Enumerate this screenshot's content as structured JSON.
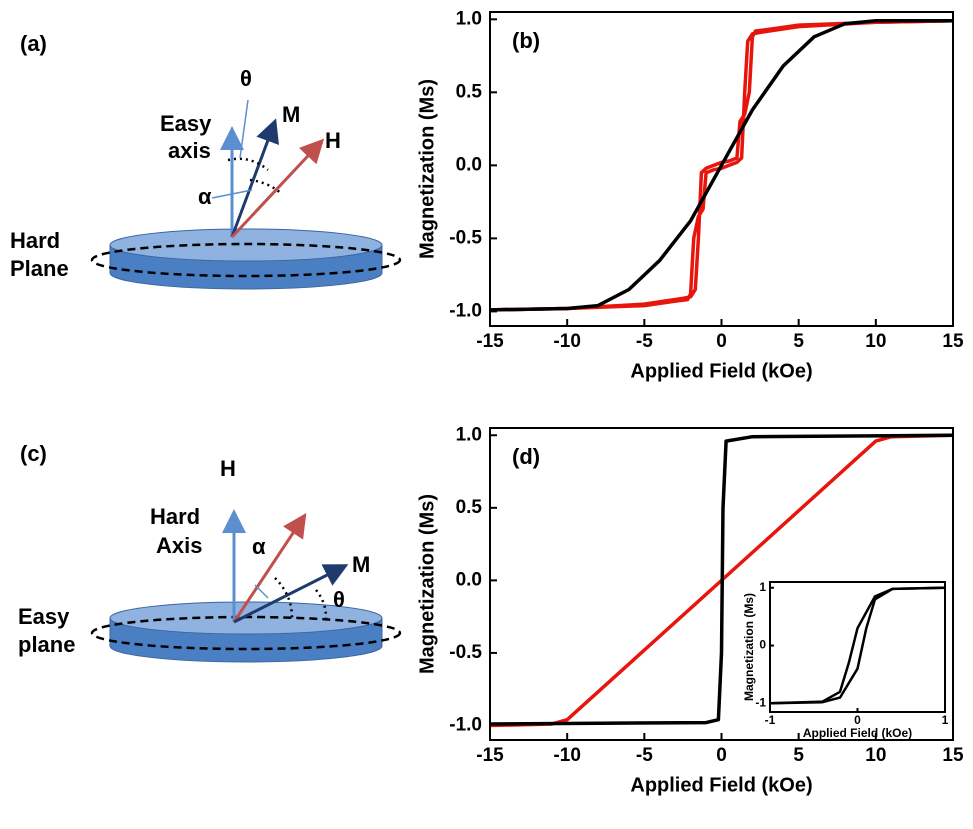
{
  "diagrams": [
    {
      "label": "(a)",
      "theta": "θ",
      "easy_axis": [
        "Easy",
        "axis"
      ],
      "m": "M",
      "h": "H",
      "alpha": "α",
      "plane": [
        "Hard",
        "Plane"
      ]
    },
    {
      "label": "(c)",
      "h": "H",
      "hard_axis": [
        "Hard",
        "Axis"
      ],
      "alpha": "α",
      "m": "M",
      "theta": "θ",
      "plane": [
        "Easy",
        "plane"
      ]
    }
  ],
  "chart_data": [
    {
      "type": "line",
      "panel_label": "(b)",
      "xlabel": "Applied Field (kOe)",
      "ylabel": "Magnetization (Ms)",
      "xlim": [
        -15,
        15
      ],
      "xticks": [
        -15,
        -10,
        -5,
        0,
        5,
        10,
        15
      ],
      "ylim": [
        -1.1,
        1.05
      ],
      "yticks": [
        {
          "value": 1.0,
          "label": "1.0"
        },
        0.5,
        {
          "value": 0.0,
          "label": "0.0"
        },
        -0.5,
        {
          "value": -1.0,
          "label": "-1.0"
        }
      ],
      "series": [
        {
          "color": "#e8150d",
          "x": [
            15,
            10,
            5,
            3,
            2.2,
            2,
            1.8,
            1.5,
            1.2,
            1,
            0.5,
            0,
            -0.5,
            -1,
            -1.3,
            -1.5,
            -1.7,
            -2,
            -2.5,
            -5,
            -10,
            -15
          ],
          "values": [
            0.99,
            0.98,
            0.96,
            0.93,
            0.92,
            0.88,
            0.5,
            0.35,
            0.3,
            0.05,
            0.03,
            0.02,
            0.0,
            -0.02,
            -0.05,
            -0.5,
            -0.85,
            -0.9,
            -0.91,
            -0.95,
            -0.98,
            -0.99
          ]
        },
        {
          "color": "#e8150d",
          "x": [
            -15,
            -10,
            -5,
            -3,
            -2.2,
            -2,
            -1.8,
            -1.5,
            -1.2,
            -1,
            -0.5,
            0,
            0.5,
            1,
            1.3,
            1.5,
            1.7,
            2,
            2.5,
            5,
            10,
            15
          ],
          "values": [
            -0.99,
            -0.98,
            -0.96,
            -0.93,
            -0.92,
            -0.88,
            -0.5,
            -0.35,
            -0.3,
            -0.05,
            -0.03,
            -0.02,
            0.0,
            0.02,
            0.05,
            0.5,
            0.85,
            0.9,
            0.91,
            0.95,
            0.98,
            0.99
          ]
        },
        {
          "color": "#000000",
          "x": [
            -15,
            -10,
            -8,
            -6,
            -4,
            -2,
            0,
            2,
            4,
            6,
            8,
            10,
            15
          ],
          "values": [
            -0.99,
            -0.98,
            -0.96,
            -0.85,
            -0.65,
            -0.38,
            0,
            0.38,
            0.68,
            0.88,
            0.97,
            0.99,
            0.99
          ]
        }
      ]
    },
    {
      "type": "line",
      "panel_label": "(d)",
      "xlabel": "Applied Field (kOe)",
      "ylabel": "Magnetization (Ms)",
      "xlim": [
        -15,
        15
      ],
      "xticks": [
        -15,
        -10,
        -5,
        0,
        5,
        10,
        15
      ],
      "ylim": [
        -1.1,
        1.05
      ],
      "yticks": [
        {
          "value": 1.0,
          "label": "1.0"
        },
        0.5,
        {
          "value": 0.0,
          "label": "0.0"
        },
        -0.5,
        {
          "value": -1.0,
          "label": "-1.0"
        }
      ],
      "series": [
        {
          "color": "#e8150d",
          "x": [
            -15,
            -11,
            -10,
            10,
            11,
            15
          ],
          "values": [
            -1,
            -0.99,
            -0.96,
            0.96,
            0.99,
            1
          ]
        },
        {
          "color": "#000000",
          "x": [
            -15,
            -1,
            -0.2,
            0,
            0.1,
            0.3,
            2,
            15
          ],
          "values": [
            -0.99,
            -0.98,
            -0.96,
            -0.5,
            0.5,
            0.96,
            0.99,
            1
          ]
        }
      ]
    },
    {
      "type": "line",
      "xlabel": "Applied Field (kOe)",
      "ylabel": "Magnetization (Ms)",
      "xlim": [
        -1,
        1
      ],
      "xticks": [
        -1,
        0,
        1
      ],
      "ylim": [
        -1.15,
        1.1
      ],
      "yticks": [
        -1,
        0,
        1
      ],
      "series": [
        {
          "color": "#000000",
          "x": [
            -1,
            -0.4,
            -0.2,
            0,
            0.1,
            0.2,
            0.4,
            1
          ],
          "values": [
            -1,
            -0.98,
            -0.9,
            -0.4,
            0.3,
            0.8,
            0.98,
            1
          ]
        },
        {
          "color": "#000000",
          "x": [
            1,
            0.4,
            0.2,
            0,
            -0.1,
            -0.2,
            -0.4,
            -1
          ],
          "values": [
            1,
            0.98,
            0.85,
            0.3,
            -0.3,
            -0.8,
            -0.97,
            -1
          ]
        }
      ]
    }
  ]
}
